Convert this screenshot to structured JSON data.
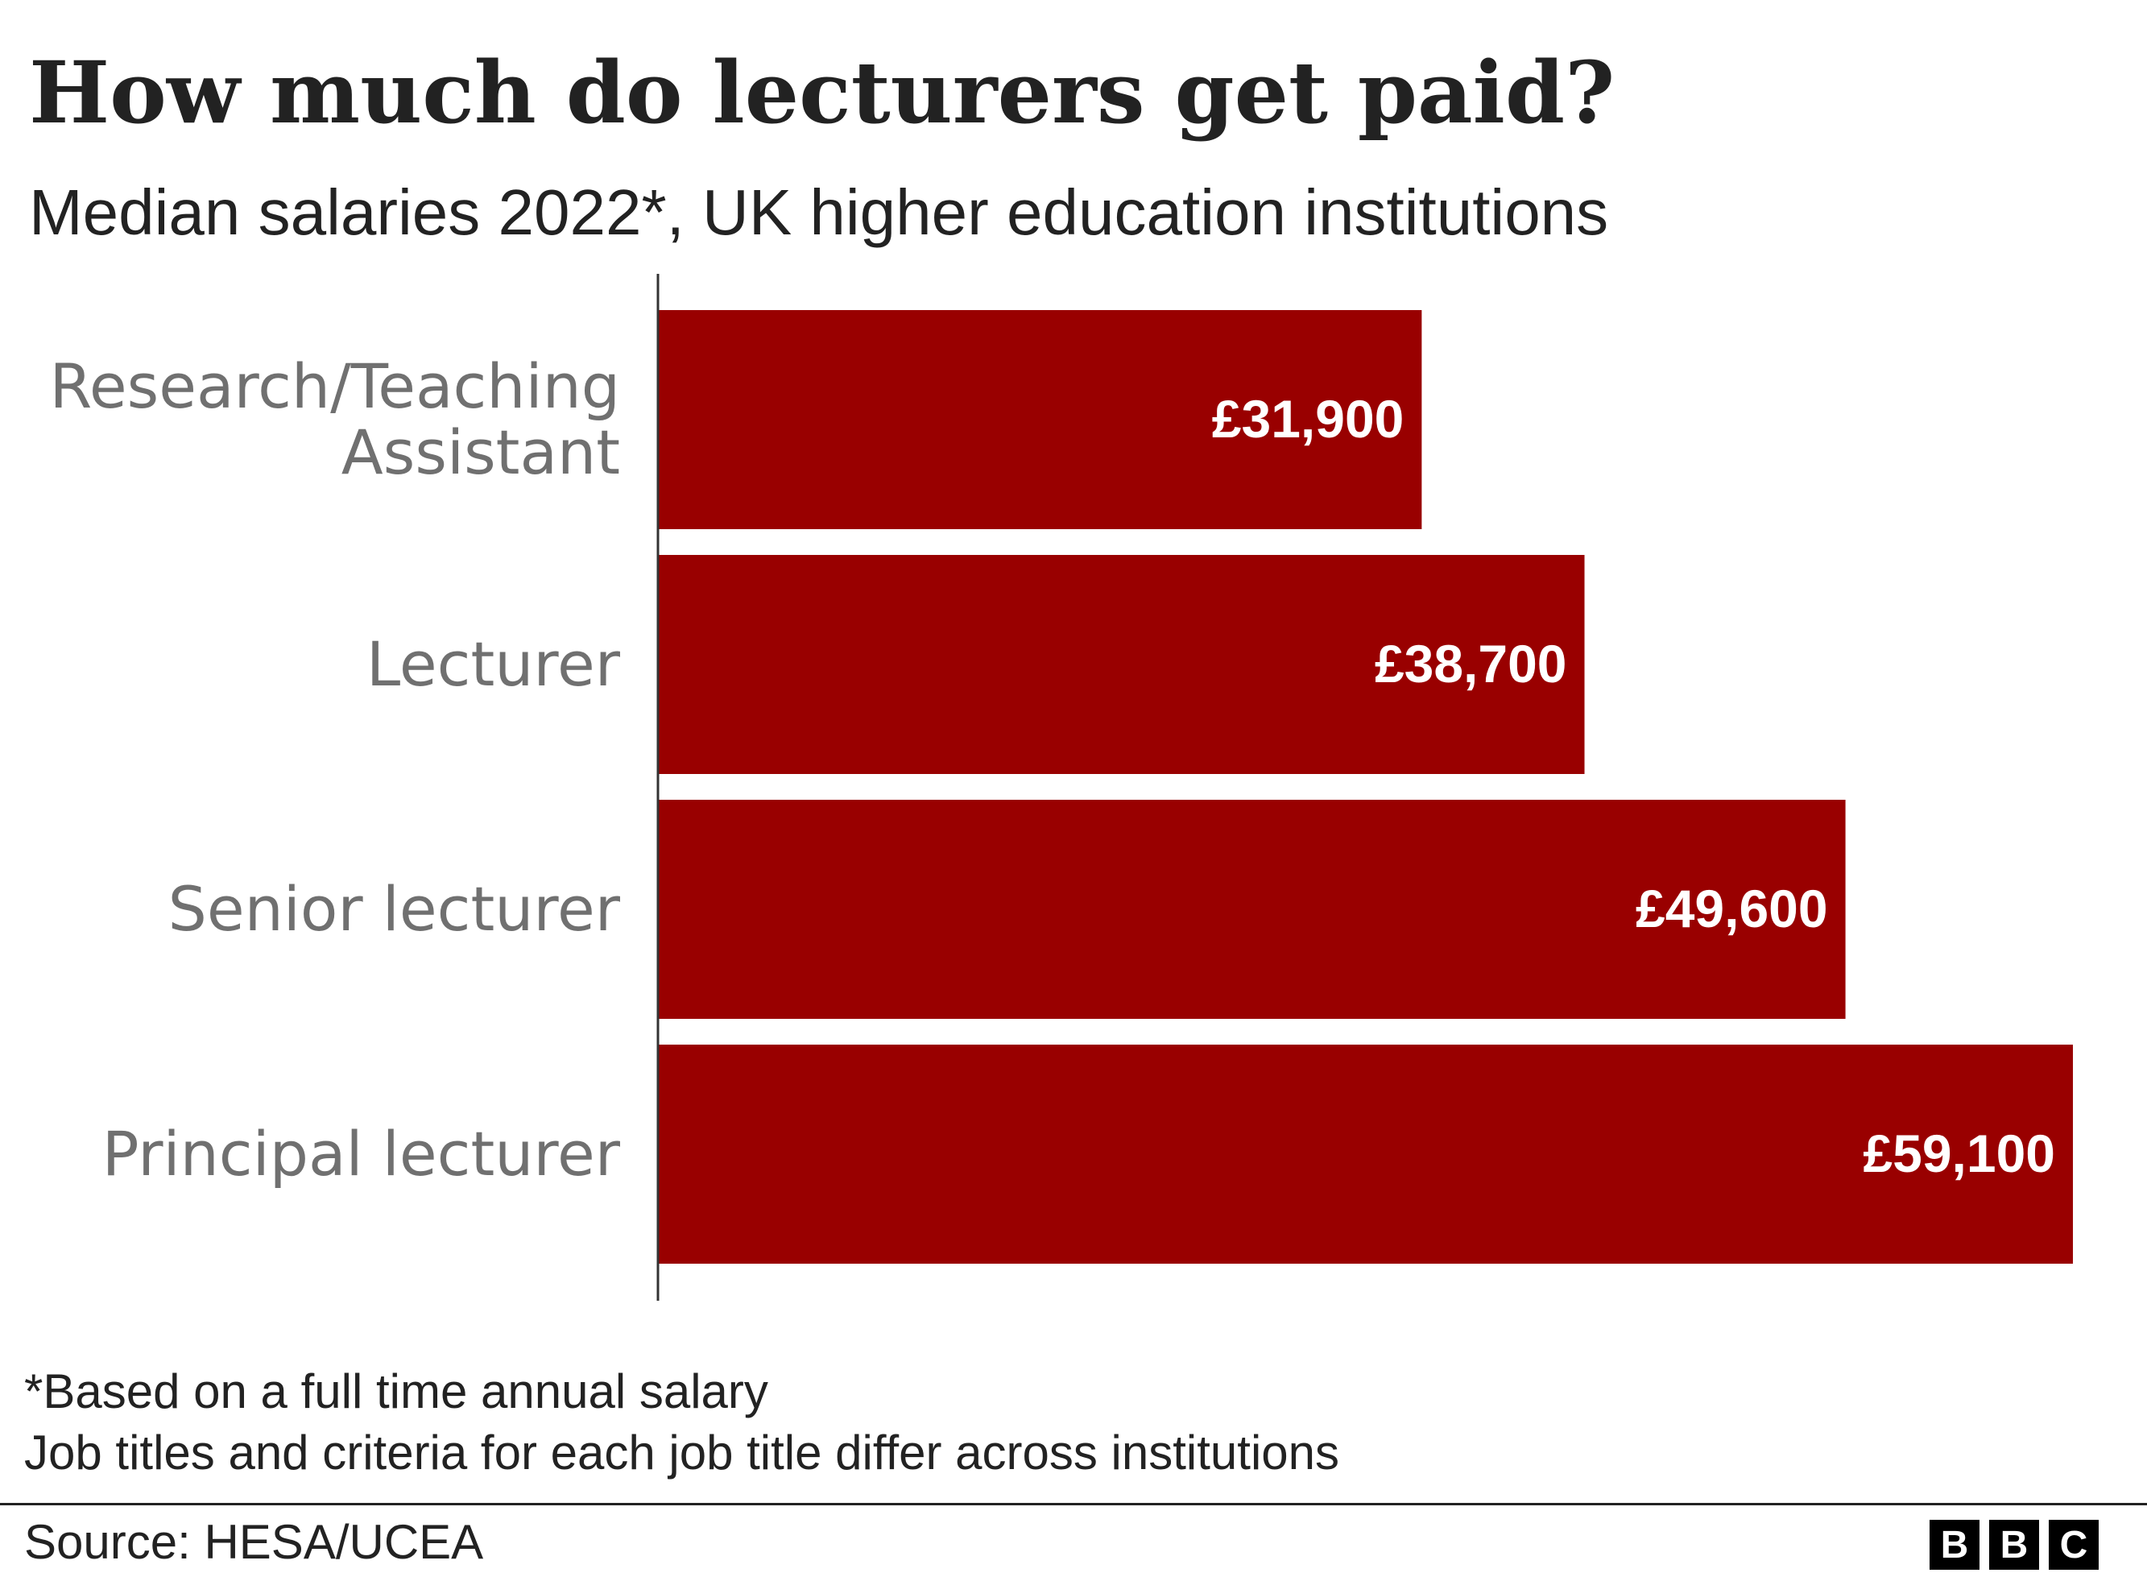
{
  "header": {
    "title": "How much do lecturers get paid?",
    "subtitle": "Median salaries 2022*, UK higher education institutions"
  },
  "chart_data": {
    "type": "bar",
    "orientation": "horizontal",
    "categories": [
      [
        "Research/Teaching",
        "Assistant"
      ],
      [
        "Lecturer"
      ],
      [
        "Senior lecturer"
      ],
      [
        "Principal lecturer"
      ]
    ],
    "values": [
      31900,
      38700,
      49600,
      59100
    ],
    "value_labels": [
      "£31,900",
      "£38,700",
      "£49,600",
      "£59,100"
    ],
    "xlim": [
      0,
      59100
    ],
    "grid": false,
    "bar_color": "#990000",
    "label_color": "#ffffff",
    "category_label_color": "#707070"
  },
  "footnotes": [
    "*Based on a full time annual salary",
    "Job titles and criteria for each job title differ across institutions"
  ],
  "footer": {
    "source": "Source: HESA/UCEA",
    "logo": [
      "B",
      "B",
      "C"
    ]
  }
}
